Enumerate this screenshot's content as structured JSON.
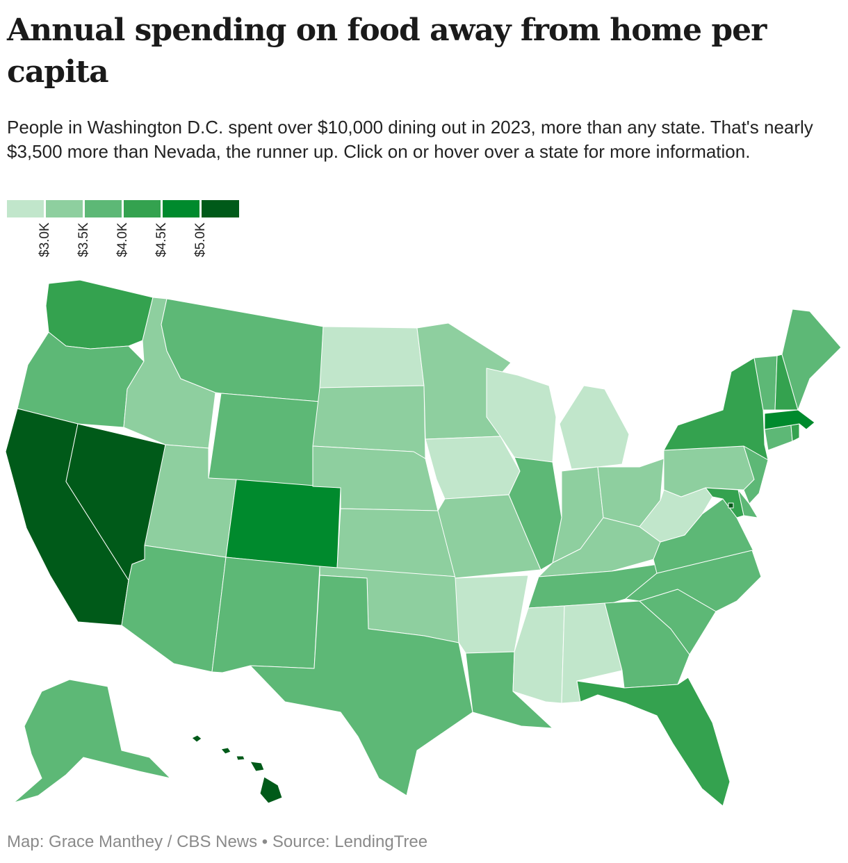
{
  "title": "Annual spending on food away from home per capita",
  "subtitle": "People in Washington D.C. spent over $10,000 dining out in 2023, more than any state. That's nearly $3,500 more than Nevada, the runner up. Click on or hover over a state for more information.",
  "legend": {
    "colors": [
      "#c1e6cb",
      "#8ecf9f",
      "#5db876",
      "#34a24f",
      "#008a2d",
      "#005a19"
    ],
    "ticks": [
      "$3.0K",
      "$3.5K",
      "$4.0K",
      "$4.5K",
      "$5.0K"
    ]
  },
  "source": "Map: Grace Manthey / CBS News • Source: LendingTree",
  "chart_data": {
    "type": "choropleth",
    "metric": "Annual spending on food away from home per capita",
    "bins": [
      {
        "bin": 0,
        "range": "< $3.0K"
      },
      {
        "bin": 1,
        "range": "$3.0K–$3.5K"
      },
      {
        "bin": 2,
        "range": "$3.5K–$4.0K"
      },
      {
        "bin": 3,
        "range": "$4.0K–$4.5K"
      },
      {
        "bin": 4,
        "range": "$4.5K–$5.0K"
      },
      {
        "bin": 5,
        "range": "> $5.0K"
      }
    ],
    "states": {
      "WA": 3,
      "OR": 2,
      "CA": 5,
      "NV": 5,
      "ID": 1,
      "MT": 2,
      "WY": 2,
      "UT": 1,
      "AZ": 2,
      "CO": 4,
      "NM": 2,
      "ND": 0,
      "SD": 1,
      "NE": 1,
      "KS": 1,
      "OK": 1,
      "TX": 2,
      "MN": 1,
      "IA": 0,
      "MO": 1,
      "AR": 0,
      "LA": 2,
      "WI": 0,
      "IL": 2,
      "MI": 0,
      "IN": 1,
      "OH": 1,
      "KY": 1,
      "TN": 2,
      "MS": 0,
      "AL": 0,
      "GA": 2,
      "FL": 3,
      "SC": 2,
      "NC": 2,
      "VA": 2,
      "WV": 0,
      "PA": 1,
      "NY": 3,
      "VT": 2,
      "NH": 3,
      "ME": 2,
      "MA": 4,
      "RI": 3,
      "CT": 2,
      "NJ": 2,
      "DE": 2,
      "MD": 3,
      "DC": 5,
      "AK": 2,
      "HI": 5
    }
  }
}
